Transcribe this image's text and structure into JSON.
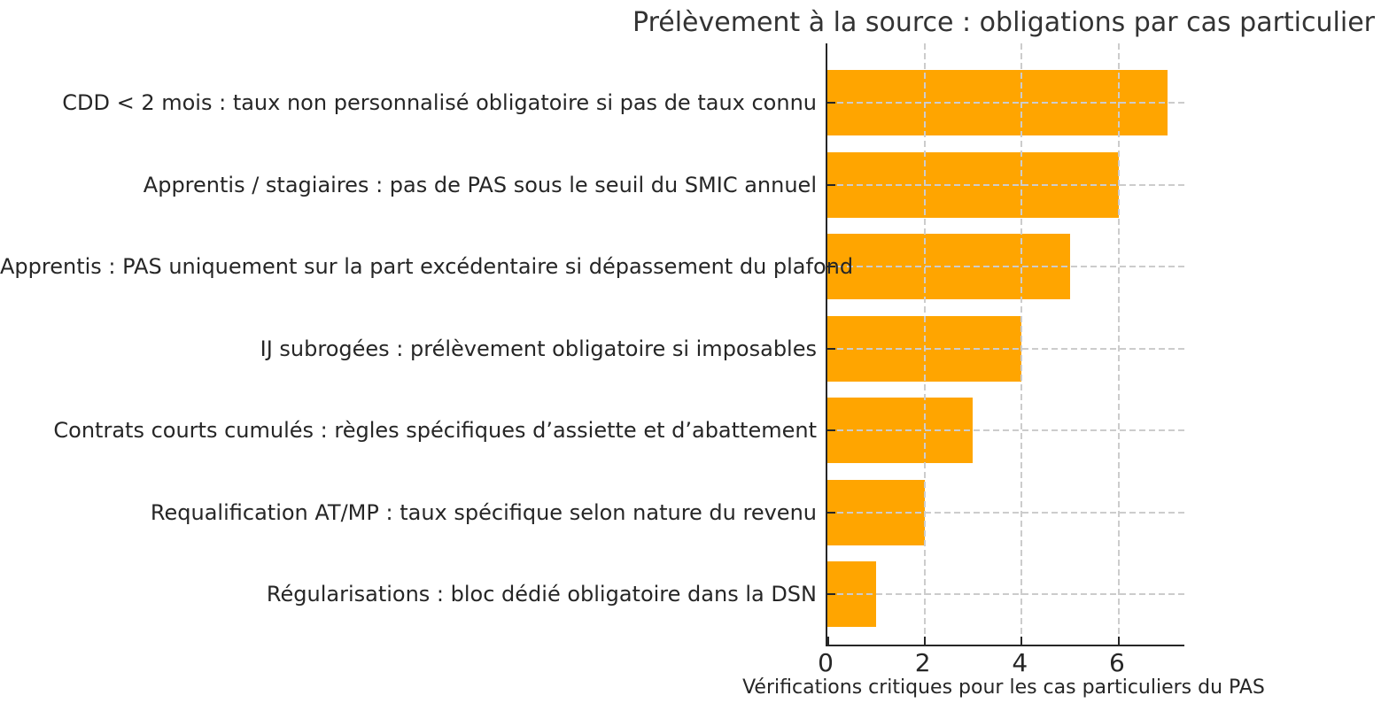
{
  "chart_data": {
    "type": "bar",
    "orientation": "horizontal",
    "title": "Prélèvement à la source : obligations par cas particulier",
    "xlabel": "Vérifications critiques pour les cas particuliers du PAS",
    "ylabel": "",
    "categories": [
      "CDD < 2 mois : taux non personnalisé obligatoire si pas de taux connu",
      "Apprentis / stagiaires : pas de PAS sous le seuil du SMIC annuel",
      "Apprentis : PAS uniquement sur la part excédentaire si dépassement du plafond",
      "IJ subrogées : prélèvement obligatoire si imposables",
      "Contrats courts cumulés : règles spécifiques d’assiette et d’abattement",
      "Requalification AT/MP : taux spécifique selon nature du revenu",
      "Régularisations : bloc dédié obligatoire dans la DSN"
    ],
    "values": [
      7,
      6,
      5,
      4,
      3,
      2,
      1
    ],
    "xlim": [
      0,
      7.35
    ],
    "xticks": [
      "0",
      "2",
      "4",
      "6"
    ],
    "xtick_values": [
      0,
      2,
      4,
      6
    ],
    "grid": {
      "style": "dashed",
      "color": "#cccccc",
      "drawn_over_bars": true
    },
    "legend": "none",
    "colors": {
      "bar": "#FFA500",
      "axis": "#262626",
      "text": "#262626",
      "title": "#333333",
      "background": "#ffffff"
    }
  }
}
